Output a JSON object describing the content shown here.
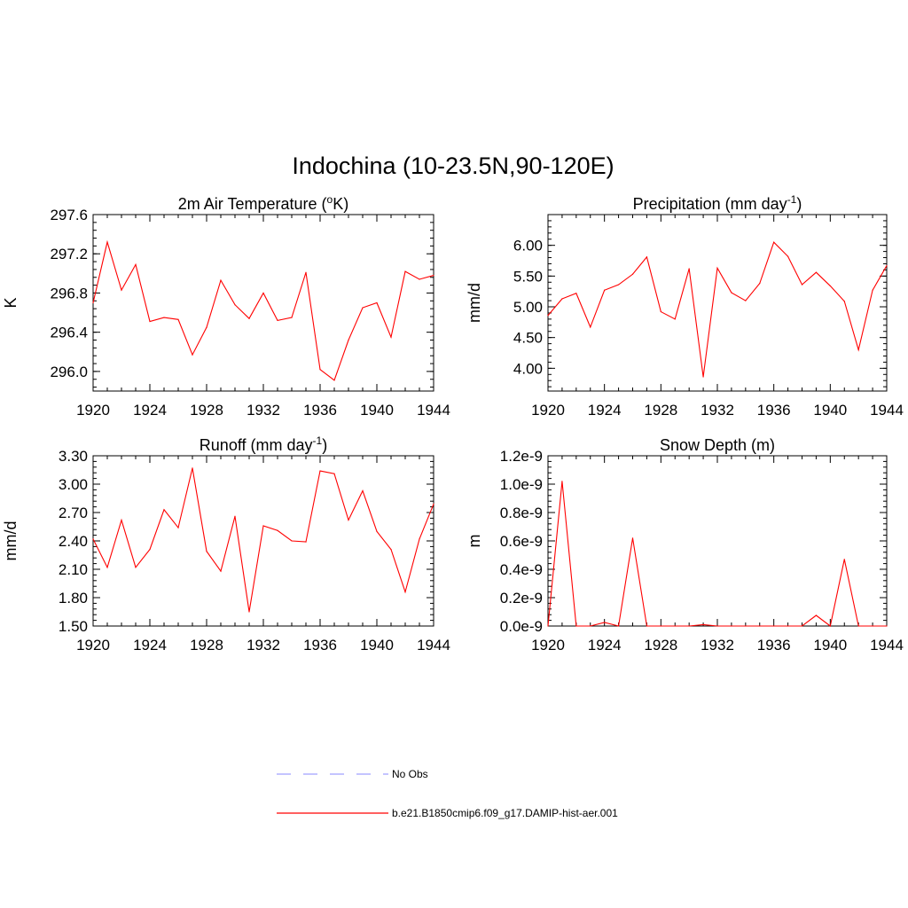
{
  "title": "Indochina (10-23.5N,90-120E)",
  "colors": {
    "model": "#ff0000",
    "obs": "#a0a0ff",
    "axis": "#000000"
  },
  "legend": [
    {
      "label": "No Obs",
      "style": "dashed",
      "color": "#a0a0ff"
    },
    {
      "label": "b.e21.B1850cmip6.f09_g17.DAMIP-hist-aer.001",
      "style": "solid",
      "color": "#ff0000"
    }
  ],
  "chart_data": [
    {
      "type": "line",
      "title": "2m Air Temperature (",
      "title_sup": "o",
      "title_tail": "K)",
      "ylabel": "K",
      "xlim": [
        1920,
        1944
      ],
      "ylim": [
        295.8,
        297.6
      ],
      "xticks": [
        "1920",
        "1924",
        "1928",
        "1932",
        "1936",
        "1940",
        "1944"
      ],
      "yticks": [
        296.0,
        296.4,
        296.8,
        297.2,
        297.6
      ],
      "ytick_labels": [
        "296.0",
        "296.4",
        "296.8",
        "297.2",
        "297.6"
      ],
      "x": [
        1920,
        1921,
        1922,
        1923,
        1924,
        1925,
        1926,
        1927,
        1928,
        1929,
        1930,
        1931,
        1932,
        1933,
        1934,
        1935,
        1936,
        1937,
        1938,
        1939,
        1940,
        1941,
        1942,
        1943,
        1944
      ],
      "series": [
        {
          "name": "b.e21.B1850cmip6.f09_g17.DAMIP-hist-aer.001",
          "values": [
            296.7,
            297.32,
            296.83,
            297.09,
            296.51,
            296.55,
            296.53,
            296.17,
            296.45,
            296.93,
            296.68,
            296.54,
            296.8,
            296.52,
            296.55,
            297.01,
            296.02,
            295.91,
            296.32,
            296.65,
            296.7,
            296.35,
            297.02,
            296.94,
            296.98
          ]
        }
      ]
    },
    {
      "type": "line",
      "title": "Precipitation (mm day",
      "title_sup": "-1",
      "title_tail": ")",
      "ylabel": "mm/d",
      "xlim": [
        1920,
        1944
      ],
      "ylim": [
        3.63,
        6.5
      ],
      "xticks": [
        "1920",
        "1924",
        "1928",
        "1932",
        "1936",
        "1940",
        "1944"
      ],
      "yticks": [
        4.0,
        4.5,
        5.0,
        5.5,
        6.0
      ],
      "ytick_labels": [
        "4.00",
        "4.50",
        "5.00",
        "5.50",
        "6.00"
      ],
      "x": [
        1920,
        1921,
        1922,
        1923,
        1924,
        1925,
        1926,
        1927,
        1928,
        1929,
        1930,
        1931,
        1932,
        1933,
        1934,
        1935,
        1936,
        1937,
        1938,
        1939,
        1940,
        1941,
        1942,
        1943,
        1944
      ],
      "series": [
        {
          "name": "b.e21.B1850cmip6.f09_g17.DAMIP-hist-aer.001",
          "values": [
            4.86,
            5.13,
            5.22,
            4.67,
            5.27,
            5.36,
            5.53,
            5.81,
            4.92,
            4.8,
            5.62,
            3.86,
            5.63,
            5.23,
            5.1,
            5.38,
            6.05,
            5.82,
            5.36,
            5.56,
            5.34,
            5.09,
            4.3,
            5.27,
            5.67
          ]
        }
      ]
    },
    {
      "type": "line",
      "title": "Runoff (mm day",
      "title_sup": "-1",
      "title_tail": ")",
      "ylabel": "mm/d",
      "xlim": [
        1920,
        1944
      ],
      "ylim": [
        1.5,
        3.3
      ],
      "xticks": [
        "1920",
        "1924",
        "1928",
        "1932",
        "1936",
        "1940",
        "1944"
      ],
      "yticks": [
        1.5,
        1.8,
        2.1,
        2.4,
        2.7,
        3.0,
        3.3
      ],
      "ytick_labels": [
        "1.50",
        "1.80",
        "2.10",
        "2.40",
        "2.70",
        "3.00",
        "3.30"
      ],
      "x": [
        1920,
        1921,
        1922,
        1923,
        1924,
        1925,
        1926,
        1927,
        1928,
        1929,
        1930,
        1931,
        1932,
        1933,
        1934,
        1935,
        1936,
        1937,
        1938,
        1939,
        1940,
        1941,
        1942,
        1943,
        1944
      ],
      "series": [
        {
          "name": "b.e21.B1850cmip6.f09_g17.DAMIP-hist-aer.001",
          "values": [
            2.42,
            2.12,
            2.62,
            2.12,
            2.31,
            2.73,
            2.54,
            3.17,
            2.29,
            2.08,
            2.66,
            1.65,
            2.56,
            2.51,
            2.4,
            2.39,
            3.14,
            3.11,
            2.62,
            2.93,
            2.5,
            2.31,
            1.86,
            2.42,
            2.79
          ]
        }
      ]
    },
    {
      "type": "line",
      "title": "Snow Depth (m)",
      "title_sup": "",
      "title_tail": "",
      "ylabel": "m",
      "xlim": [
        1920,
        1944
      ],
      "ylim": [
        0,
        1.2e-09
      ],
      "xticks": [
        "1920",
        "1924",
        "1928",
        "1932",
        "1936",
        "1940",
        "1944"
      ],
      "yticks": [
        0,
        2e-10,
        4e-10,
        6e-10,
        8e-10,
        1e-09,
        1.2e-09
      ],
      "ytick_labels": [
        "0.0e-9",
        "0.2e-9",
        "0.4e-9",
        "0.6e-9",
        "0.8e-9",
        "1.0e-9",
        "1.2e-9"
      ],
      "x": [
        1920,
        1921,
        1922,
        1923,
        1924,
        1925,
        1926,
        1927,
        1928,
        1929,
        1930,
        1931,
        1932,
        1933,
        1934,
        1935,
        1936,
        1937,
        1938,
        1939,
        1940,
        1941,
        1942,
        1943,
        1944
      ],
      "series": [
        {
          "name": "b.e21.B1850cmip6.f09_g17.DAMIP-hist-aer.001",
          "values": [
            0,
            1.02e-09,
            0,
            0,
            2.5e-11,
            0,
            6.2e-10,
            0,
            0,
            0,
            0,
            1e-11,
            0,
            0,
            0,
            0,
            0,
            0,
            0,
            7.5e-11,
            0,
            4.7e-10,
            0,
            0,
            0
          ]
        }
      ]
    }
  ]
}
